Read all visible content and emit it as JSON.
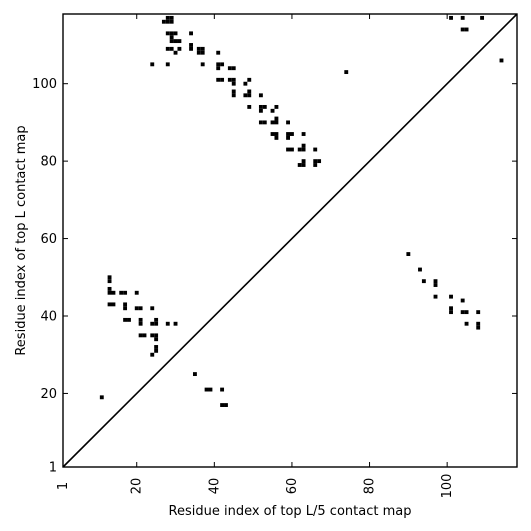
{
  "chart_data": {
    "type": "scatter",
    "title": "",
    "xlabel": "Residue index of top L/5 contact map",
    "ylabel": "Residue index of top L contact map",
    "xlim": [
      1,
      118
    ],
    "ylim": [
      1,
      118
    ],
    "xticks": [
      1,
      20,
      40,
      60,
      80,
      100
    ],
    "yticks": [
      1,
      20,
      40,
      60,
      80,
      100
    ],
    "xtick_labels": [
      "1",
      "20",
      "40",
      "60",
      "80",
      "100"
    ],
    "ytick_labels": [
      "1",
      "20",
      "40",
      "60",
      "80",
      "100"
    ],
    "diagonal": true,
    "grid": false,
    "marker_color": "#000000",
    "upper_triangle_points": [
      [
        28,
        117
      ],
      [
        28,
        116
      ],
      [
        29,
        117
      ],
      [
        29,
        116
      ],
      [
        27,
        116
      ],
      [
        28,
        113
      ],
      [
        29,
        113
      ],
      [
        30,
        113
      ],
      [
        34,
        113
      ],
      [
        29,
        112
      ],
      [
        29,
        111
      ],
      [
        30,
        111
      ],
      [
        31,
        111
      ],
      [
        34,
        110
      ],
      [
        28,
        109
      ],
      [
        29,
        109
      ],
      [
        31,
        109
      ],
      [
        30,
        108
      ],
      [
        34,
        109
      ],
      [
        36,
        109
      ],
      [
        37,
        109
      ],
      [
        36,
        108
      ],
      [
        37,
        108
      ],
      [
        41,
        108
      ],
      [
        24,
        105
      ],
      [
        28,
        105
      ],
      [
        37,
        105
      ],
      [
        41,
        105
      ],
      [
        42,
        105
      ],
      [
        41,
        104
      ],
      [
        44,
        104
      ],
      [
        45,
        104
      ],
      [
        41,
        101
      ],
      [
        42,
        101
      ],
      [
        44,
        101
      ],
      [
        45,
        101
      ],
      [
        45,
        100
      ],
      [
        49,
        101
      ],
      [
        48,
        100
      ],
      [
        45,
        98
      ],
      [
        45,
        97
      ],
      [
        48,
        97
      ],
      [
        49,
        97
      ],
      [
        49,
        98
      ],
      [
        52,
        97
      ],
      [
        49,
        94
      ],
      [
        52,
        94
      ],
      [
        53,
        94
      ],
      [
        52,
        93
      ],
      [
        55,
        93
      ],
      [
        56,
        94
      ],
      [
        52,
        90
      ],
      [
        53,
        90
      ],
      [
        55,
        90
      ],
      [
        56,
        90
      ],
      [
        56,
        91
      ],
      [
        59,
        90
      ],
      [
        55,
        87
      ],
      [
        56,
        87
      ],
      [
        56,
        86
      ],
      [
        59,
        87
      ],
      [
        60,
        87
      ],
      [
        59,
        86
      ],
      [
        63,
        87
      ],
      [
        59,
        83
      ],
      [
        60,
        83
      ],
      [
        62,
        83
      ],
      [
        63,
        83
      ],
      [
        63,
        84
      ],
      [
        66,
        83
      ],
      [
        62,
        79
      ],
      [
        63,
        79
      ],
      [
        63,
        80
      ],
      [
        66,
        80
      ],
      [
        67,
        80
      ],
      [
        66,
        79
      ],
      [
        74,
        103
      ],
      [
        101,
        117
      ],
      [
        104,
        117
      ],
      [
        109,
        117
      ],
      [
        104,
        114
      ],
      [
        105,
        114
      ],
      [
        114,
        106
      ]
    ],
    "lower_triangle_points": [
      [
        11,
        19
      ],
      [
        13,
        50
      ],
      [
        13,
        49
      ],
      [
        13,
        47
      ],
      [
        13,
        46
      ],
      [
        14,
        46
      ],
      [
        16,
        46
      ],
      [
        17,
        46
      ],
      [
        20,
        46
      ],
      [
        13,
        43
      ],
      [
        14,
        43
      ],
      [
        17,
        43
      ],
      [
        17,
        42
      ],
      [
        20,
        42
      ],
      [
        21,
        42
      ],
      [
        24,
        42
      ],
      [
        17,
        39
      ],
      [
        18,
        39
      ],
      [
        21,
        39
      ],
      [
        21,
        38
      ],
      [
        24,
        38
      ],
      [
        25,
        38
      ],
      [
        25,
        39
      ],
      [
        28,
        38
      ],
      [
        30,
        38
      ],
      [
        21,
        35
      ],
      [
        22,
        35
      ],
      [
        24,
        35
      ],
      [
        25,
        35
      ],
      [
        25,
        34
      ],
      [
        25,
        32
      ],
      [
        25,
        31
      ],
      [
        24,
        30
      ],
      [
        35,
        25
      ],
      [
        38,
        21
      ],
      [
        39,
        21
      ],
      [
        42,
        21
      ],
      [
        42,
        17
      ],
      [
        43,
        17
      ],
      [
        90,
        56
      ],
      [
        93,
        52
      ],
      [
        94,
        49
      ],
      [
        97,
        49
      ],
      [
        97,
        48
      ],
      [
        97,
        45
      ],
      [
        101,
        45
      ],
      [
        104,
        44
      ],
      [
        101,
        42
      ],
      [
        101,
        41
      ],
      [
        104,
        41
      ],
      [
        105,
        41
      ],
      [
        108,
        41
      ],
      [
        105,
        38
      ],
      [
        108,
        38
      ],
      [
        108,
        37
      ]
    ]
  }
}
